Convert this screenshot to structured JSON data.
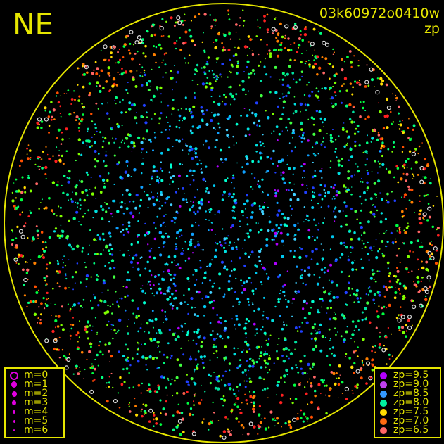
{
  "direction_label": "NE",
  "frame_id": "03k60972o0410w",
  "plot_quantity": "zp",
  "colors": {
    "circle": "#e6e600",
    "text": "#e6e600",
    "background": "#000000"
  },
  "magnitude_legend": [
    {
      "label": "m=0",
      "marker": "ring"
    },
    {
      "label": "m=1",
      "marker": "dot"
    },
    {
      "label": "m=2",
      "marker": "dot"
    },
    {
      "label": "m=3",
      "marker": "dot"
    },
    {
      "label": "m=4",
      "marker": "dot"
    },
    {
      "label": "m=5",
      "marker": "dot"
    },
    {
      "label": "m=6",
      "marker": "dot"
    }
  ],
  "zp_legend": [
    {
      "label": "zp=9.5",
      "color": "#b400ff"
    },
    {
      "label": "zp=9.0",
      "color": "#c040f0"
    },
    {
      "label": "zp=8.5",
      "color": "#3399ff"
    },
    {
      "label": "zp=8.0",
      "color": "#00f0a0"
    },
    {
      "label": "zp=7.5",
      "color": "#ffdd00"
    },
    {
      "label": "zp=7.0",
      "color": "#ff6a10"
    },
    {
      "label": "zp=6.5",
      "color": "#ff6666"
    }
  ]
}
